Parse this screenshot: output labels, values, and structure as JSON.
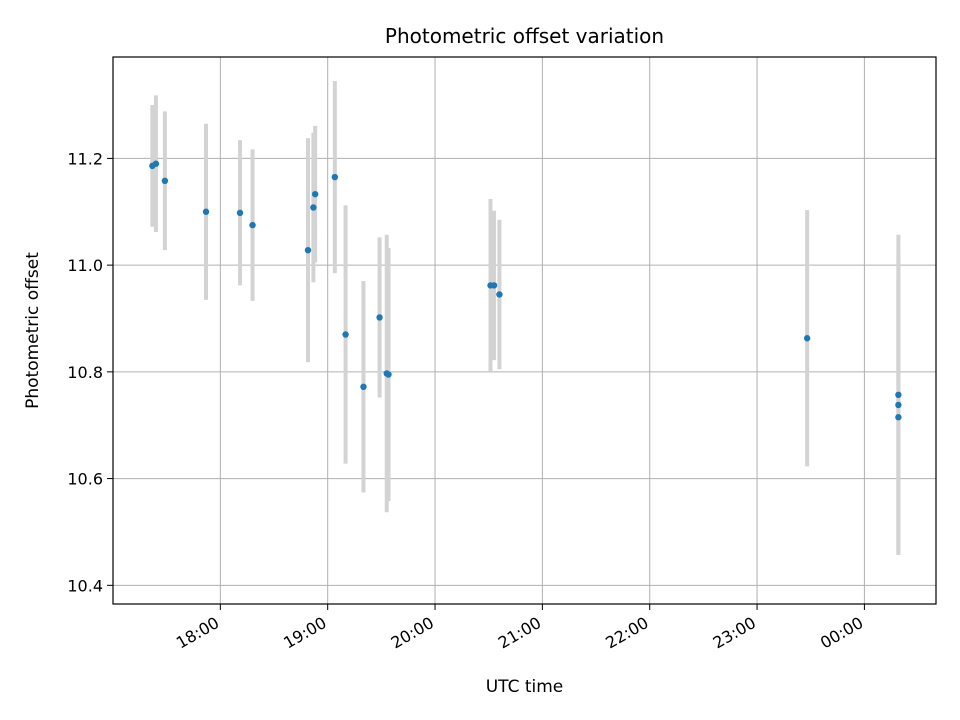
{
  "chart_data": {
    "type": "scatter",
    "title": "Photometric offset variation",
    "xlabel": "UTC time",
    "ylabel": "Photometric offset",
    "x_tick_labels": [
      "18:00",
      "19:00",
      "20:00",
      "21:00",
      "22:00",
      "23:00",
      "00:00"
    ],
    "y_tick_labels": [
      "10.4",
      "10.6",
      "10.8",
      "11.0",
      "11.2"
    ],
    "x_tick_hours": [
      18,
      19,
      20,
      21,
      22,
      23,
      24
    ],
    "y_ticks": [
      10.4,
      10.6,
      10.8,
      11.0,
      11.2
    ],
    "x_range_hours": [
      17.0,
      24.667
    ],
    "ylim": [
      10.365,
      11.39
    ],
    "grid": true,
    "colors": {
      "marker": "#1f77b4",
      "errorbar": "#d3d3d3",
      "grid": "#b0b0b0"
    },
    "points": [
      {
        "x": "17:22",
        "y": 11.186,
        "err": 0.114
      },
      {
        "x": "17:24",
        "y": 11.19,
        "err": 0.128
      },
      {
        "x": "17:29",
        "y": 11.158,
        "err": 0.13
      },
      {
        "x": "17:52",
        "y": 11.1,
        "err": 0.165
      },
      {
        "x": "18:11",
        "y": 11.098,
        "err": 0.136
      },
      {
        "x": "18:18",
        "y": 11.075,
        "err": 0.142
      },
      {
        "x": "18:49",
        "y": 11.028,
        "err": 0.21
      },
      {
        "x": "18:52",
        "y": 11.108,
        "err": 0.14
      },
      {
        "x": "18:53",
        "y": 11.133,
        "err": 0.128
      },
      {
        "x": "19:04",
        "y": 11.165,
        "err": 0.18
      },
      {
        "x": "19:10",
        "y": 10.87,
        "err": 0.242
      },
      {
        "x": "19:20",
        "y": 10.772,
        "err": 0.198
      },
      {
        "x": "19:29",
        "y": 10.902,
        "err": 0.15
      },
      {
        "x": "19:33",
        "y": 10.797,
        "err": 0.26
      },
      {
        "x": "19:34",
        "y": 10.795,
        "err": 0.237
      },
      {
        "x": "20:31",
        "y": 10.962,
        "err": 0.162
      },
      {
        "x": "20:33",
        "y": 10.962,
        "err": 0.14
      },
      {
        "x": "20:36",
        "y": 10.945,
        "err": 0.14
      },
      {
        "x": "23:28",
        "y": 10.863,
        "err": 0.24
      },
      {
        "x": "00:19",
        "y": 10.757,
        "err": 0.3
      },
      {
        "x": "00:19",
        "y": 10.738,
        "err": 0.28
      },
      {
        "x": "00:19",
        "y": 10.715,
        "err": 0.258
      }
    ]
  }
}
